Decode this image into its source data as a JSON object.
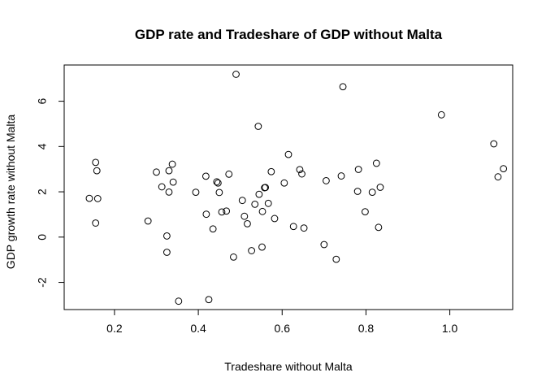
{
  "chart_data": {
    "type": "scatter",
    "title": "GDP rate and Tradeshare of GDP without Malta",
    "xlabel": "Tradeshare without Malta",
    "ylabel": "GDP growth rate without Malta",
    "xlim": [
      0.08,
      1.15
    ],
    "ylim": [
      -3.2,
      7.6
    ],
    "xticks": [
      0.2,
      0.4,
      0.6,
      0.8,
      1.0
    ],
    "xtick_labels": [
      "0.2",
      "0.4",
      "0.6",
      "0.8",
      "1.0"
    ],
    "yticks": [
      -2,
      0,
      2,
      4,
      6
    ],
    "ytick_labels": [
      "-2",
      "0",
      "2",
      "4",
      "6"
    ],
    "grid": false,
    "legend": "none",
    "marker": "open-circle",
    "points": [
      {
        "x": 0.14,
        "y": 1.71
      },
      {
        "x": 0.155,
        "y": 3.3
      },
      {
        "x": 0.158,
        "y": 2.93
      },
      {
        "x": 0.16,
        "y": 1.7
      },
      {
        "x": 0.155,
        "y": 0.62
      },
      {
        "x": 0.28,
        "y": 0.71
      },
      {
        "x": 0.3,
        "y": 2.87
      },
      {
        "x": 0.313,
        "y": 2.22
      },
      {
        "x": 0.325,
        "y": 0.05
      },
      {
        "x": 0.325,
        "y": -0.67
      },
      {
        "x": 0.33,
        "y": 2.93
      },
      {
        "x": 0.33,
        "y": 1.99
      },
      {
        "x": 0.338,
        "y": 3.22
      },
      {
        "x": 0.34,
        "y": 2.43
      },
      {
        "x": 0.353,
        "y": -2.83
      },
      {
        "x": 0.394,
        "y": 1.98
      },
      {
        "x": 0.418,
        "y": 2.69
      },
      {
        "x": 0.419,
        "y": 1.01
      },
      {
        "x": 0.425,
        "y": -2.76
      },
      {
        "x": 0.435,
        "y": 0.36
      },
      {
        "x": 0.444,
        "y": 2.44
      },
      {
        "x": 0.447,
        "y": 2.39
      },
      {
        "x": 0.45,
        "y": 1.97
      },
      {
        "x": 0.456,
        "y": 1.11
      },
      {
        "x": 0.467,
        "y": 1.15
      },
      {
        "x": 0.473,
        "y": 2.78
      },
      {
        "x": 0.484,
        "y": -0.88
      },
      {
        "x": 0.49,
        "y": 7.19
      },
      {
        "x": 0.505,
        "y": 1.62
      },
      {
        "x": 0.51,
        "y": 0.92
      },
      {
        "x": 0.517,
        "y": 0.59
      },
      {
        "x": 0.527,
        "y": -0.6
      },
      {
        "x": 0.535,
        "y": 1.45
      },
      {
        "x": 0.543,
        "y": 4.89
      },
      {
        "x": 0.545,
        "y": 1.89
      },
      {
        "x": 0.552,
        "y": -0.44
      },
      {
        "x": 0.553,
        "y": 1.13
      },
      {
        "x": 0.558,
        "y": 2.18
      },
      {
        "x": 0.56,
        "y": 2.19
      },
      {
        "x": 0.567,
        "y": 1.49
      },
      {
        "x": 0.574,
        "y": 2.89
      },
      {
        "x": 0.582,
        "y": 0.82
      },
      {
        "x": 0.605,
        "y": 2.39
      },
      {
        "x": 0.615,
        "y": 3.65
      },
      {
        "x": 0.627,
        "y": 0.47
      },
      {
        "x": 0.642,
        "y": 2.98
      },
      {
        "x": 0.647,
        "y": 2.79
      },
      {
        "x": 0.652,
        "y": 0.4
      },
      {
        "x": 0.7,
        "y": -0.33
      },
      {
        "x": 0.705,
        "y": 2.49
      },
      {
        "x": 0.729,
        "y": -0.98
      },
      {
        "x": 0.741,
        "y": 2.7
      },
      {
        "x": 0.745,
        "y": 6.64
      },
      {
        "x": 0.78,
        "y": 2.02
      },
      {
        "x": 0.782,
        "y": 2.99
      },
      {
        "x": 0.798,
        "y": 1.12
      },
      {
        "x": 0.815,
        "y": 1.98
      },
      {
        "x": 0.825,
        "y": 3.26
      },
      {
        "x": 0.83,
        "y": 0.43
      },
      {
        "x": 0.834,
        "y": 2.2
      },
      {
        "x": 0.98,
        "y": 5.4
      },
      {
        "x": 1.105,
        "y": 4.12
      },
      {
        "x": 1.115,
        "y": 2.66
      },
      {
        "x": 1.128,
        "y": 3.02
      }
    ]
  }
}
